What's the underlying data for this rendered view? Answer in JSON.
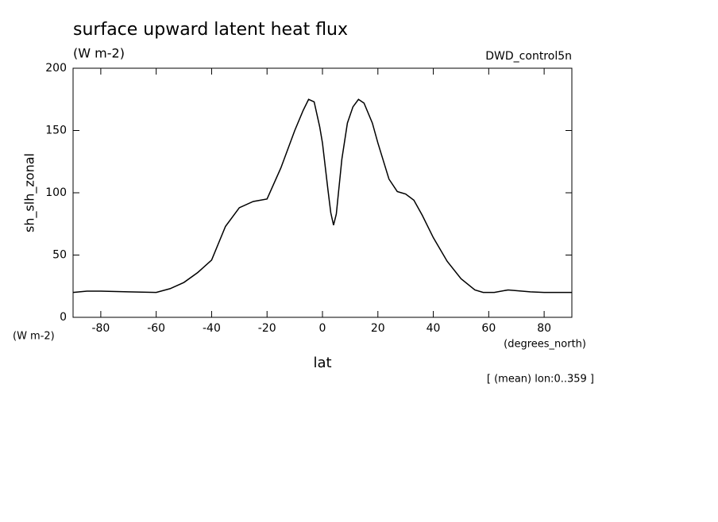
{
  "chart_data": {
    "type": "line",
    "title": "surface upward latent heat flux",
    "units": "(W m-2)",
    "dataset": "DWD_control5n",
    "y_label": "sh_slh_zonal",
    "y_units": "(W m-2)",
    "x_units": "(degrees_north)",
    "x_label": "lat",
    "note": "[ (mean) lon:0..359 ]",
    "x": [
      -90,
      -85,
      -80,
      -70,
      -60,
      -55,
      -50,
      -45,
      -40,
      -35,
      -30,
      -25,
      -20,
      -15,
      -10,
      -7,
      -5,
      -3,
      -1,
      0,
      2,
      3,
      4,
      5,
      7,
      9,
      11,
      13,
      15,
      18,
      20,
      24,
      27,
      30,
      33,
      36,
      40,
      45,
      50,
      55,
      58,
      62,
      67,
      75,
      80,
      90
    ],
    "series": [
      {
        "name": "sh_slh_zonal",
        "color": "#000000",
        "values": [
          20,
          21,
          21,
          20.5,
          20,
          23,
          28,
          36,
          46,
          73,
          88,
          93,
          95,
          120,
          150,
          166,
          175,
          173,
          153,
          140,
          102,
          84,
          74,
          83,
          127,
          156,
          169,
          175,
          172,
          156,
          140,
          111,
          101,
          99,
          94,
          82,
          64,
          45,
          31,
          22,
          20,
          20,
          22,
          20.5,
          20,
          20
        ]
      }
    ],
    "xlim": [
      -90,
      90
    ],
    "ylim": [
      0,
      200
    ],
    "xticks": [
      -80,
      -60,
      -40,
      -20,
      0,
      20,
      40,
      60,
      80
    ],
    "yticks": [
      0,
      50,
      100,
      150,
      200
    ]
  }
}
